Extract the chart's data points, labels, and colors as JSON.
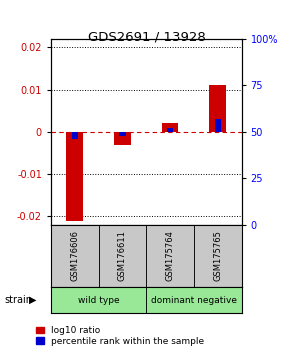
{
  "title": "GDS2691 / 13928",
  "samples": [
    "GSM176606",
    "GSM176611",
    "GSM175764",
    "GSM175765"
  ],
  "log10_ratio": [
    -0.021,
    -0.003,
    0.002,
    0.011
  ],
  "percentile_rank": [
    46,
    48,
    52,
    57
  ],
  "red_color": "#CC0000",
  "blue_color": "#0000CC",
  "ylim": [
    -0.022,
    0.022
  ],
  "yticks_left": [
    -0.02,
    -0.01,
    0,
    0.01,
    0.02
  ],
  "yticks_right": [
    0,
    25,
    50,
    75,
    100
  ],
  "bar_width": 0.35,
  "wt_color": "#98E898",
  "dn_color": "#98E898",
  "sample_box_color": "#C8C8C8",
  "legend_labels": [
    "log10 ratio",
    "percentile rank within the sample"
  ],
  "group_label": "strain"
}
